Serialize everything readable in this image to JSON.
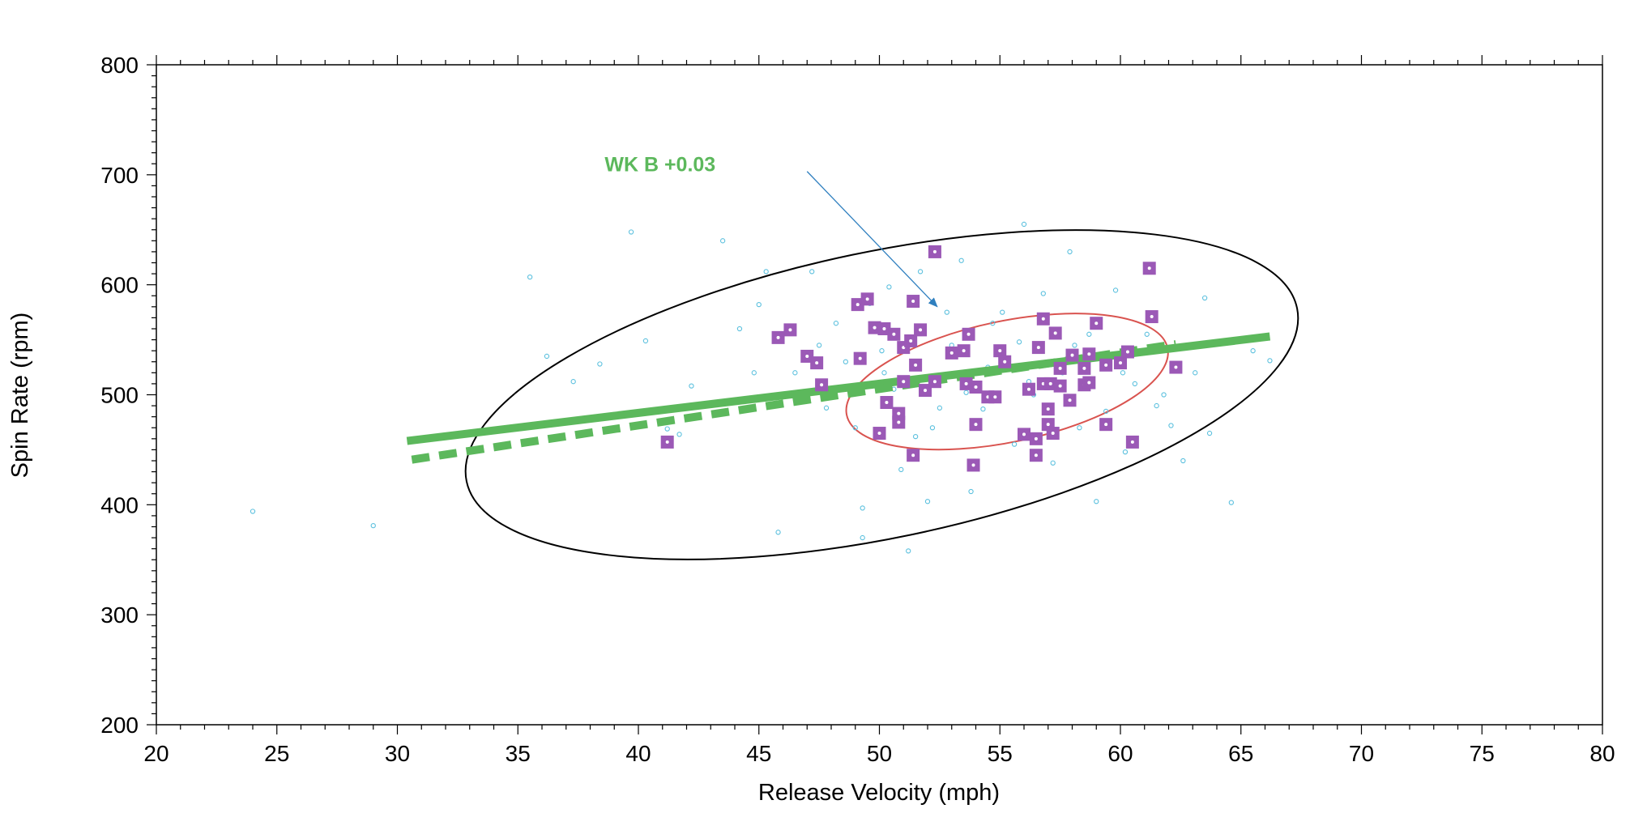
{
  "chart_data": {
    "type": "scatter",
    "title": "",
    "xlabel": "Release Velocity (mph)",
    "ylabel": "Spin Rate (rpm)",
    "xlim": [
      20,
      80
    ],
    "ylim": [
      200,
      800
    ],
    "x_ticks": [
      20,
      25,
      30,
      35,
      40,
      45,
      50,
      55,
      60,
      65,
      70,
      75,
      80
    ],
    "y_ticks": [
      200,
      300,
      400,
      500,
      600,
      700,
      800
    ],
    "grid": false,
    "colors": {
      "fit": "#5cb85c",
      "highlight": "#9b59b6",
      "background_points": "#5bc0de",
      "outer_ellipse": "#000000",
      "inner_ellipse": "#d9534f",
      "arrow": "#2f7fbf"
    },
    "series": [
      {
        "name": "all pitches",
        "marker": "small-open-circle",
        "color": "#5bc0de",
        "points": [
          [
            24,
            394
          ],
          [
            29,
            381
          ],
          [
            35.5,
            607
          ],
          [
            39.7,
            648
          ],
          [
            40.3,
            549
          ],
          [
            41.2,
            469
          ],
          [
            41.7,
            464
          ],
          [
            42.2,
            508
          ],
          [
            43.5,
            640
          ],
          [
            44.2,
            560
          ],
          [
            44.8,
            520
          ],
          [
            45.3,
            612
          ],
          [
            45.8,
            375
          ],
          [
            46.5,
            520
          ],
          [
            47.2,
            612
          ],
          [
            47.8,
            488
          ],
          [
            48.2,
            565
          ],
          [
            48.6,
            530
          ],
          [
            49,
            470
          ],
          [
            49.3,
            397
          ],
          [
            49.3,
            370
          ],
          [
            49.6,
            583
          ],
          [
            50.2,
            520
          ],
          [
            50.4,
            598
          ],
          [
            50.6,
            505
          ],
          [
            50.9,
            432
          ],
          [
            51.2,
            358
          ],
          [
            51.5,
            462
          ],
          [
            51.7,
            612
          ],
          [
            52,
            403
          ],
          [
            52.2,
            470
          ],
          [
            52.5,
            488
          ],
          [
            53,
            545
          ],
          [
            53.4,
            622
          ],
          [
            53.8,
            412
          ],
          [
            54.3,
            487
          ],
          [
            54.7,
            565
          ],
          [
            55.1,
            575
          ],
          [
            55.6,
            455
          ],
          [
            56,
            655
          ],
          [
            56.4,
            500
          ],
          [
            56.8,
            592
          ],
          [
            57.2,
            438
          ],
          [
            57.6,
            520
          ],
          [
            57.9,
            630
          ],
          [
            58.3,
            470
          ],
          [
            58.7,
            555
          ],
          [
            59,
            403
          ],
          [
            59.4,
            485
          ],
          [
            59.8,
            595
          ],
          [
            60.2,
            448
          ],
          [
            60.6,
            510
          ],
          [
            61.1,
            555
          ],
          [
            61.5,
            490
          ],
          [
            62.1,
            472
          ],
          [
            62.6,
            440
          ],
          [
            63.1,
            520
          ],
          [
            63.5,
            588
          ],
          [
            63.7,
            465
          ],
          [
            64.6,
            402
          ],
          [
            65.5,
            540
          ],
          [
            66.2,
            531
          ],
          [
            36.2,
            535
          ],
          [
            37.3,
            512
          ],
          [
            38.4,
            528
          ],
          [
            45,
            582
          ],
          [
            47.5,
            545
          ],
          [
            50.1,
            540
          ],
          [
            52.8,
            575
          ],
          [
            54.5,
            525
          ],
          [
            56.2,
            512
          ],
          [
            58.1,
            545
          ],
          [
            60.1,
            520
          ],
          [
            61.8,
            500
          ],
          [
            55.8,
            548
          ],
          [
            53.6,
            502
          ]
        ]
      },
      {
        "name": "selected pitches",
        "marker": "filled-square",
        "color": "#9b59b6",
        "points": [
          [
            41.2,
            457
          ],
          [
            45.8,
            552
          ],
          [
            46.3,
            559
          ],
          [
            47,
            535
          ],
          [
            47.4,
            529
          ],
          [
            47.6,
            509
          ],
          [
            49.1,
            582
          ],
          [
            49.2,
            533
          ],
          [
            49.5,
            587
          ],
          [
            49.8,
            561
          ],
          [
            50.2,
            560
          ],
          [
            50.3,
            493
          ],
          [
            50.6,
            555
          ],
          [
            50.8,
            475
          ],
          [
            50.8,
            483
          ],
          [
            51,
            543
          ],
          [
            51,
            512
          ],
          [
            51.3,
            549
          ],
          [
            51.4,
            585
          ],
          [
            51.4,
            445
          ],
          [
            51.5,
            527
          ],
          [
            51.7,
            559
          ],
          [
            51.9,
            504
          ],
          [
            52.3,
            630
          ],
          [
            52.3,
            512
          ],
          [
            53,
            538
          ],
          [
            53.5,
            540
          ],
          [
            53.6,
            510
          ],
          [
            53.7,
            555
          ],
          [
            53.9,
            436
          ],
          [
            54,
            473
          ],
          [
            54,
            507
          ],
          [
            54.5,
            498
          ],
          [
            54.8,
            498
          ],
          [
            55,
            540
          ],
          [
            55.2,
            530
          ],
          [
            56,
            464
          ],
          [
            56.2,
            505
          ],
          [
            56.5,
            445
          ],
          [
            56.5,
            460
          ],
          [
            56.6,
            543
          ],
          [
            56.8,
            510
          ],
          [
            56.8,
            569
          ],
          [
            57,
            487
          ],
          [
            57,
            473
          ],
          [
            57.1,
            510
          ],
          [
            57.2,
            465
          ],
          [
            57.3,
            556
          ],
          [
            57.5,
            508
          ],
          [
            57.5,
            524
          ],
          [
            57.9,
            495
          ],
          [
            58,
            536
          ],
          [
            58.5,
            509
          ],
          [
            58.5,
            524
          ],
          [
            58.7,
            537
          ],
          [
            58.7,
            511
          ],
          [
            59,
            565
          ],
          [
            59.4,
            473
          ],
          [
            59.4,
            527
          ],
          [
            60,
            529
          ],
          [
            60.3,
            539
          ],
          [
            60.5,
            457
          ],
          [
            61.2,
            615
          ],
          [
            61.3,
            571
          ],
          [
            62.3,
            525
          ],
          [
            50,
            465
          ]
        ]
      }
    ],
    "fit_lines": [
      {
        "name": "fit solid",
        "style": "solid",
        "from": [
          30.4,
          458
        ],
        "to": [
          66.2,
          553
        ]
      },
      {
        "name": "fit dashed",
        "style": "dashed",
        "from": [
          30.6,
          441
        ],
        "to": [
          62.3,
          546
        ]
      }
    ],
    "ellipses": [
      {
        "name": "outer ellipse",
        "color": "#000000",
        "center": [
          50.1,
          500
        ],
        "semi_axes": [
          17.6,
          130
        ],
        "angle_deg": -11.8
      },
      {
        "name": "inner ellipse",
        "color": "#d9534f",
        "center": [
          55.3,
          512
        ],
        "semi_axes": [
          6.8,
          55
        ],
        "angle_deg": -11.8
      }
    ],
    "annotations": [
      {
        "text": "WK B +0.03",
        "at": [
          38.6,
          710
        ],
        "arrow_from": [
          47,
          703
        ],
        "arrow_to": [
          52.4,
          580
        ],
        "color": "#5cb85c"
      }
    ]
  }
}
